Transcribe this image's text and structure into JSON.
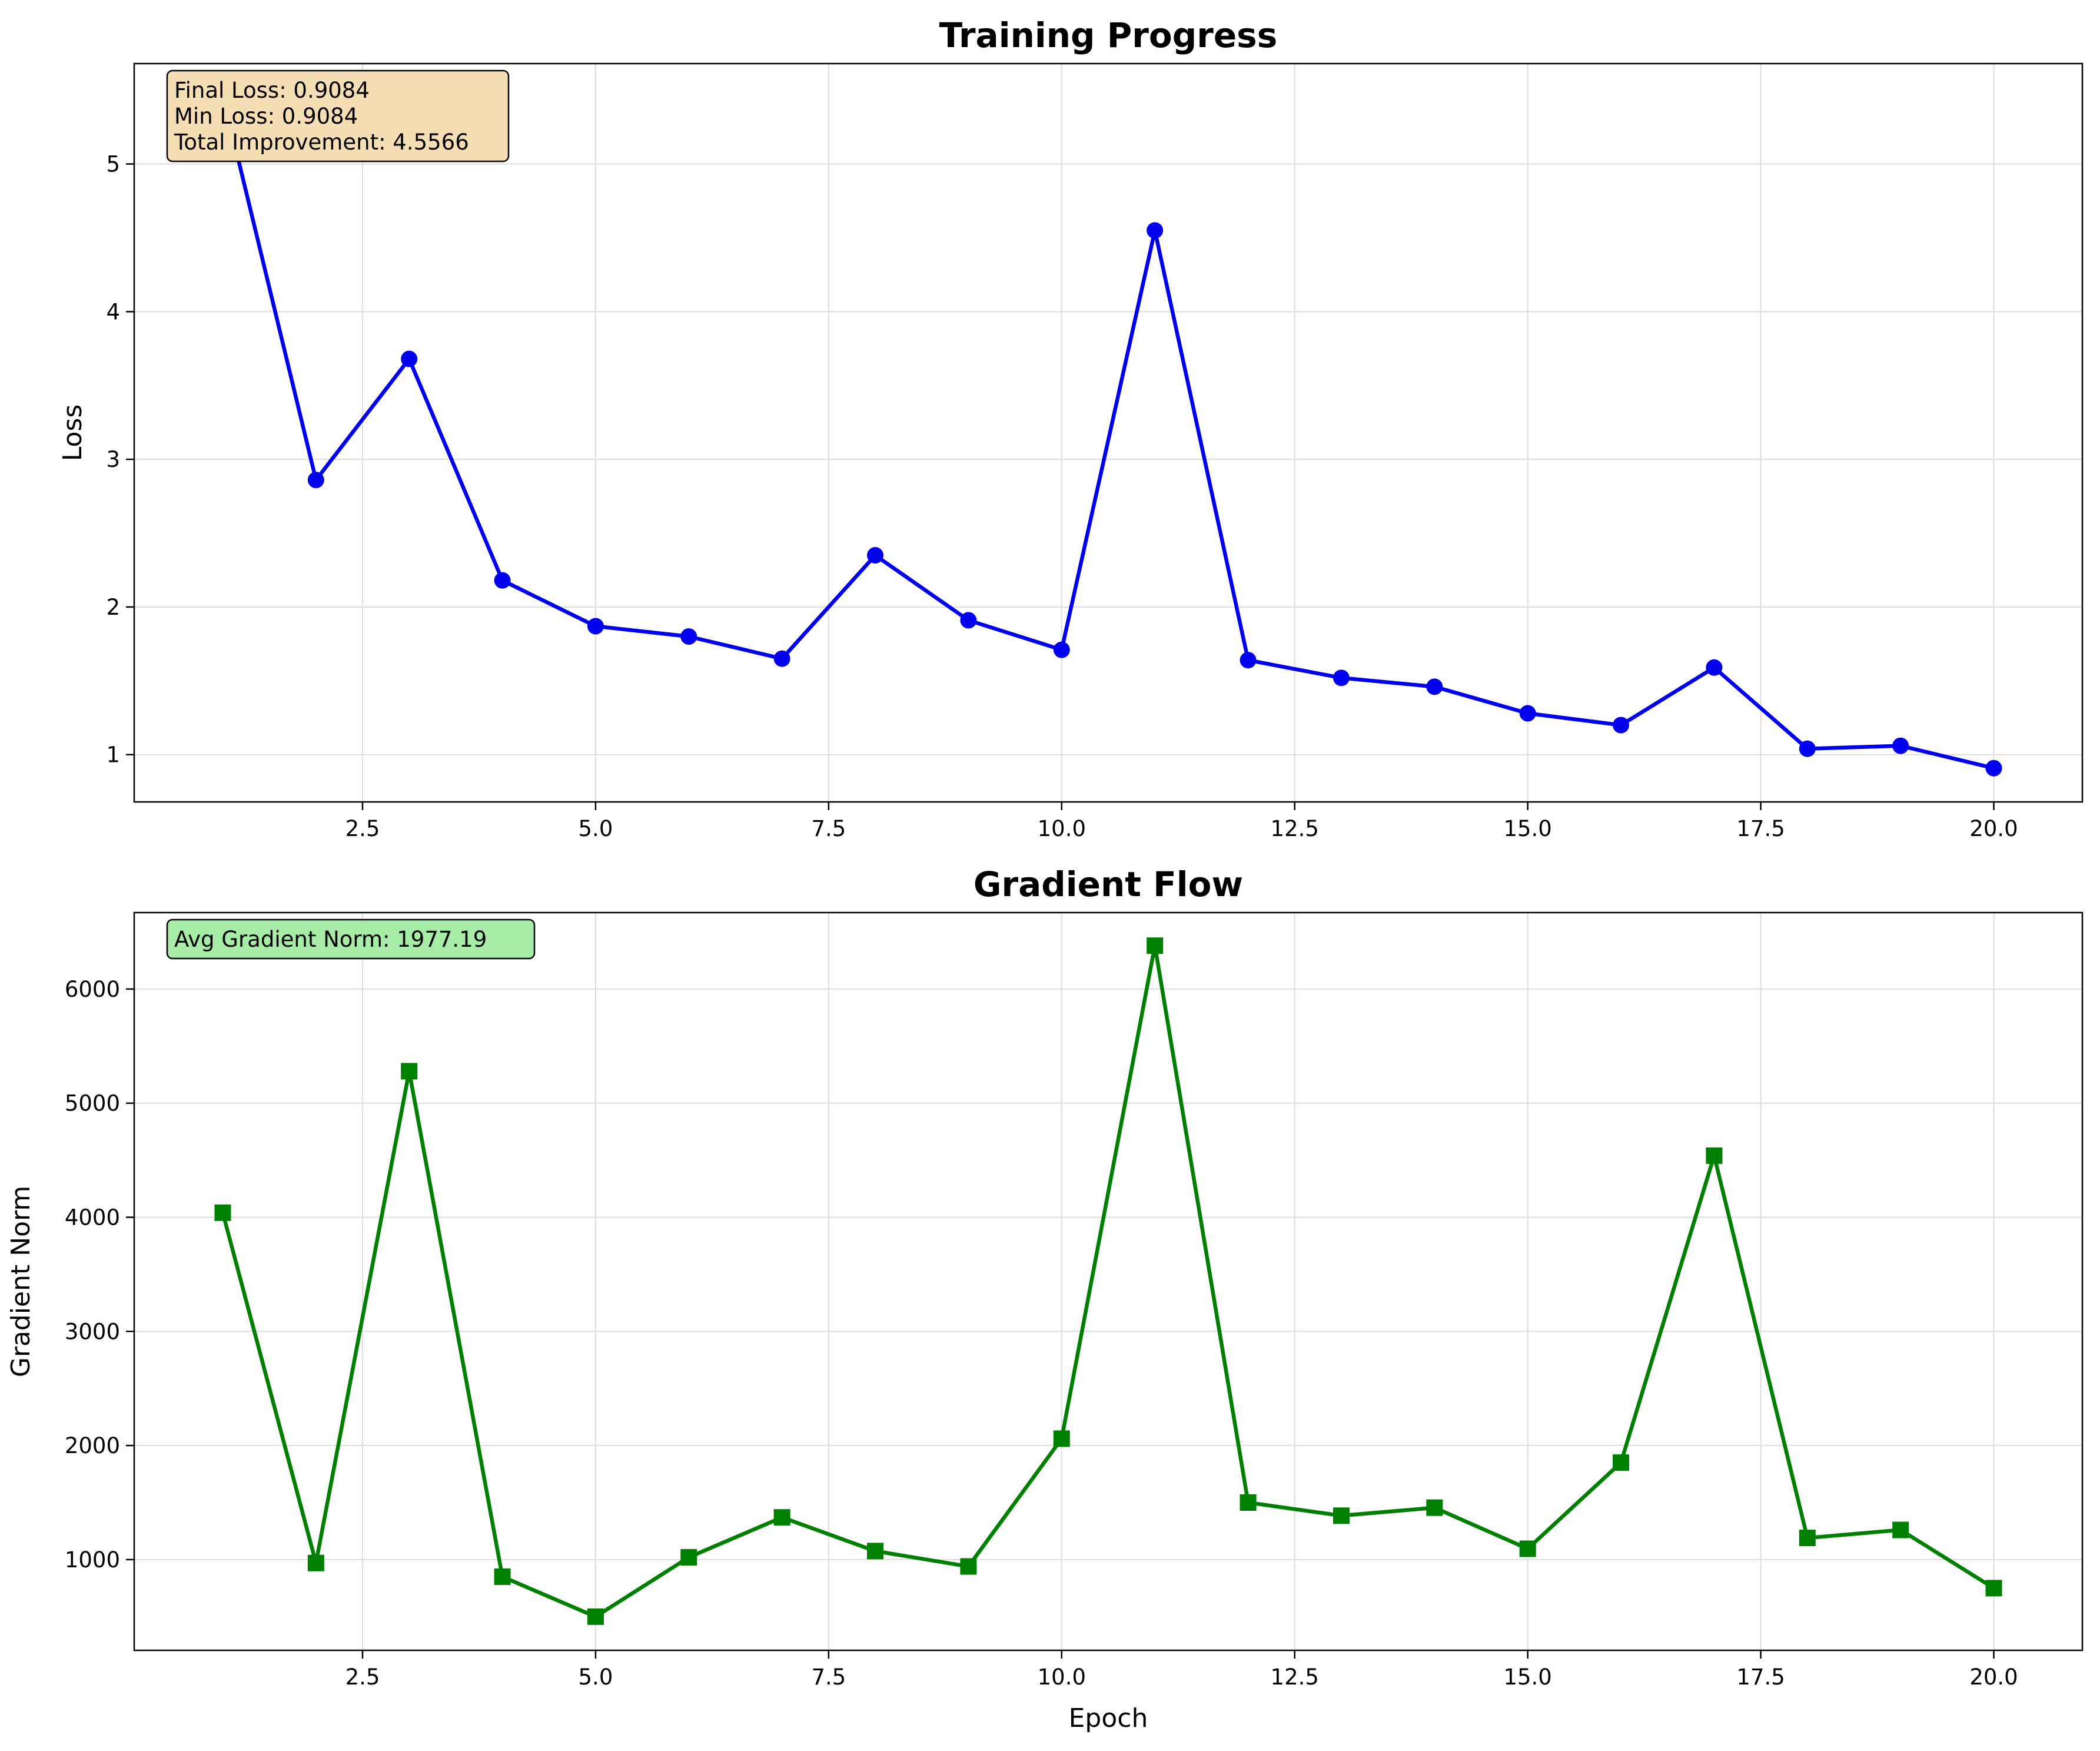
{
  "colors": {
    "loss_line": "#0000ee",
    "grad_line": "#008000",
    "loss_box": "#f5deb3",
    "grad_box": "#a6eca6",
    "grid": "#dddddd"
  },
  "chart_data": [
    {
      "type": "line",
      "title": "Training Progress",
      "xlabel": "",
      "ylabel": "Loss",
      "xlim": [
        0.05,
        20.95
      ],
      "ylim": [
        0.68,
        5.68
      ],
      "x_ticks": [
        2.5,
        5.0,
        7.5,
        10.0,
        12.5,
        15.0,
        17.5,
        20.0
      ],
      "x_tick_labels": [
        "2.5",
        "5.0",
        "7.5",
        "10.0",
        "12.5",
        "15.0",
        "17.5",
        "20.0"
      ],
      "y_ticks": [
        1,
        2,
        3,
        4,
        5
      ],
      "y_tick_labels": [
        "1",
        "2",
        "3",
        "4",
        "5"
      ],
      "grid": true,
      "marker": "circle",
      "x": [
        1,
        2,
        3,
        4,
        5,
        6,
        7,
        8,
        9,
        10,
        11,
        12,
        13,
        14,
        15,
        16,
        17,
        18,
        19,
        20
      ],
      "values": [
        5.465,
        2.86,
        3.68,
        2.18,
        1.87,
        1.8,
        1.65,
        2.35,
        1.91,
        1.71,
        4.55,
        1.64,
        1.52,
        1.46,
        1.28,
        1.2,
        1.59,
        1.04,
        1.06,
        0.9084
      ],
      "annotation_lines": [
        "Final Loss: 0.9084",
        "Min Loss: 0.9084",
        "Total Improvement: 4.5566"
      ]
    },
    {
      "type": "line",
      "title": "Gradient Flow",
      "xlabel": "Epoch",
      "ylabel": "Gradient Norm",
      "xlim": [
        0.05,
        20.95
      ],
      "ylim": [
        205,
        6670
      ],
      "x_ticks": [
        2.5,
        5.0,
        7.5,
        10.0,
        12.5,
        15.0,
        17.5,
        20.0
      ],
      "x_tick_labels": [
        "2.5",
        "5.0",
        "7.5",
        "10.0",
        "12.5",
        "15.0",
        "17.5",
        "20.0"
      ],
      "y_ticks": [
        1000,
        2000,
        3000,
        4000,
        5000,
        6000
      ],
      "y_tick_labels": [
        "1000",
        "2000",
        "3000",
        "4000",
        "5000",
        "6000"
      ],
      "grid": true,
      "marker": "square",
      "x": [
        1,
        2,
        3,
        4,
        5,
        6,
        7,
        8,
        9,
        10,
        11,
        12,
        13,
        14,
        15,
        16,
        17,
        18,
        19,
        20
      ],
      "values": [
        4040,
        970,
        5280,
        850,
        500,
        1020,
        1370,
        1075,
        940,
        2060,
        6380,
        1500,
        1385,
        1455,
        1095,
        1850,
        4540,
        1190,
        1260,
        750
      ],
      "annotation_lines": [
        "Avg Gradient Norm: 1977.19"
      ]
    }
  ]
}
